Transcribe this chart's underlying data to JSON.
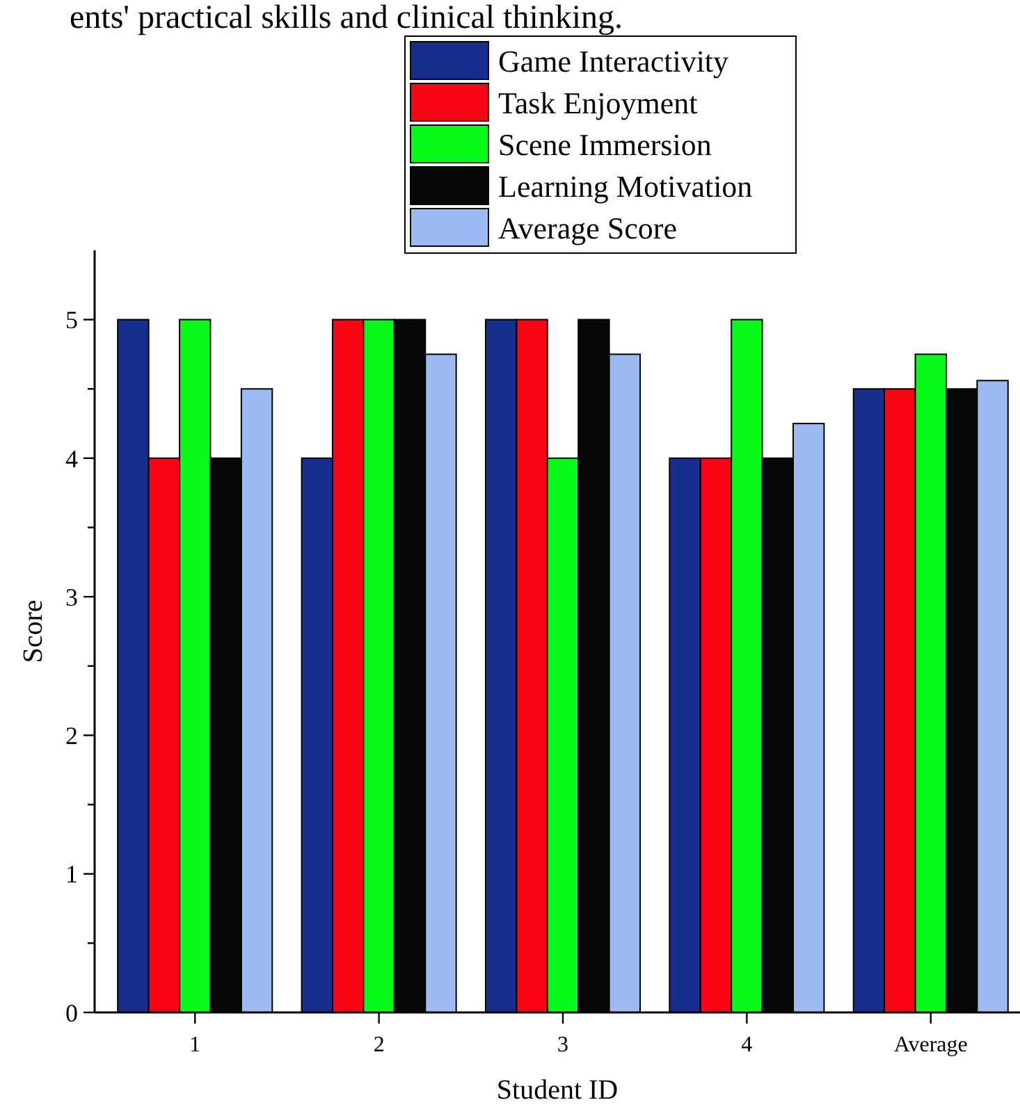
{
  "chart_data": {
    "type": "bar",
    "annotations": [
      "ents' practical skills and clinical thinking."
    ],
    "xlabel": "Student ID",
    "ylabel": "Score",
    "categories": [
      "1",
      "2",
      "3",
      "4",
      "Average"
    ],
    "series": [
      {
        "name": "Game Interactivity",
        "color": "#172f8c",
        "values": [
          5,
          4,
          5,
          4,
          4.5
        ]
      },
      {
        "name": "Task Enjoyment",
        "color": "#f90515",
        "values": [
          4,
          5,
          5,
          4,
          4.5
        ]
      },
      {
        "name": "Scene Immersion",
        "color": "#06fa1a",
        "values": [
          5,
          5,
          4,
          5,
          4.75
        ]
      },
      {
        "name": "Learning Motivation",
        "color": "#070707",
        "values": [
          4,
          5,
          5,
          4,
          4.5
        ]
      },
      {
        "name": "Average Score",
        "color": "#9dbbf3",
        "values": [
          4.5,
          4.75,
          4.75,
          4.25,
          4.56
        ]
      }
    ],
    "ylim": [
      0,
      5.5
    ],
    "yticks": [
      0,
      {
        "value": 0.5,
        "label": null
      },
      1,
      {
        "value": 1.5,
        "label": null
      },
      2,
      {
        "value": 2.5,
        "label": null
      },
      3,
      {
        "value": 3.5,
        "label": null
      },
      4,
      {
        "value": 4.5,
        "label": null
      },
      5
    ],
    "legend": "top",
    "grid": false
  }
}
